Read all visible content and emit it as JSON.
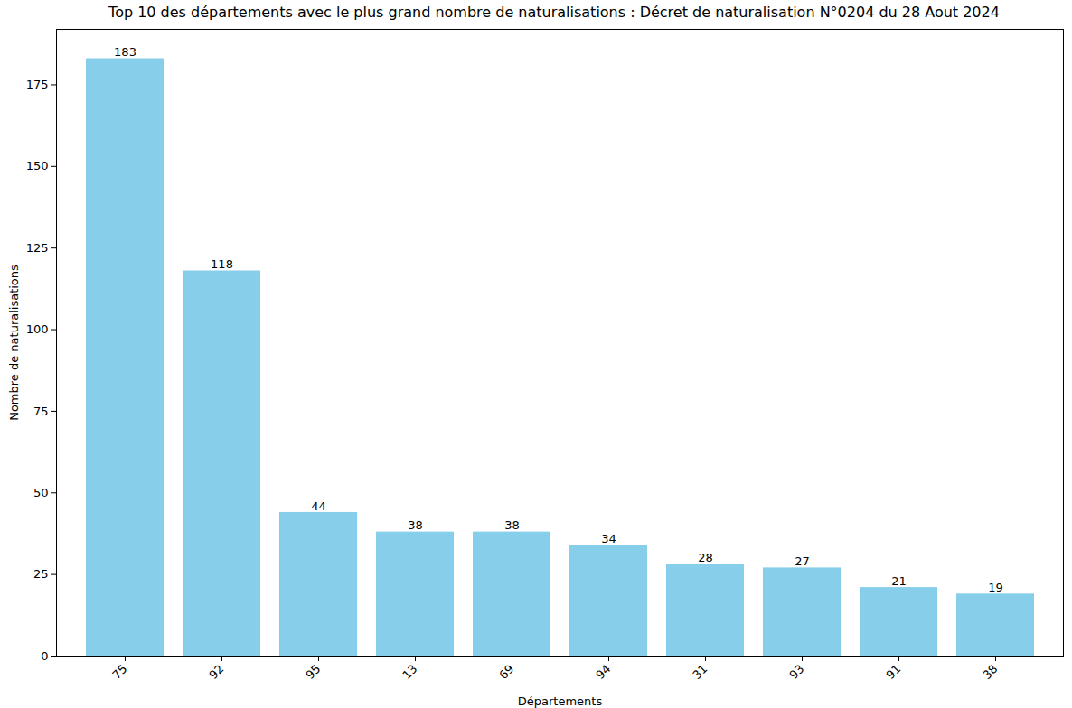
{
  "chart_data": {
    "type": "bar",
    "title": "Top 10 des départements avec le plus grand nombre de naturalisations : Décret de naturalisation N°0204 du 28 Aout 2024",
    "x_label": "Départements",
    "y_label": "Nombre de naturalisations",
    "categories": [
      "75",
      "92",
      "95",
      "13",
      "69",
      "94",
      "31",
      "93",
      "91",
      "38"
    ],
    "values": [
      183,
      118,
      44,
      38,
      38,
      34,
      28,
      27,
      21,
      19
    ],
    "color": "#87ceeb",
    "ylim": [
      0,
      192
    ],
    "yticks": [
      0,
      25,
      50,
      75,
      100,
      125,
      150,
      175
    ],
    "grid": false,
    "data_labels": true
  }
}
